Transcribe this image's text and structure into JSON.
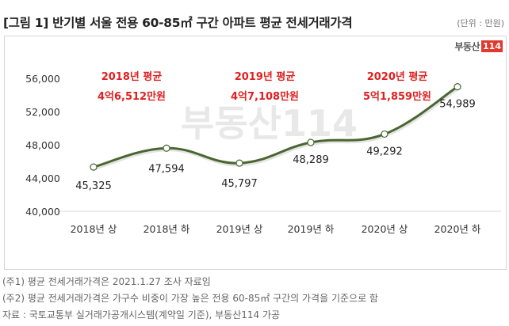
{
  "header": {
    "title": "[그림 1] 반기별 서울 전용 60-85㎡ 구간 아파트 평균 전세거래가격",
    "unit": "(단위 : 만원)"
  },
  "logo": {
    "text": "부동산",
    "badge": "114",
    "watermark": "부동산114"
  },
  "annotations": [
    {
      "line1": "2018년  평균",
      "line2": "4억6,512만원"
    },
    {
      "line1": "2019년  평균",
      "line2": "4억7,108만원"
    },
    {
      "line1": "2020년  평균",
      "line2": "5억1,859만원"
    }
  ],
  "notes": [
    "(주1) 평균 전세거래가격은 2021.1.27 조사 자료임",
    "(주2) 평균 전세거래가격은 가구수 비중이 가장 높은 전용 60-85㎡ 구간의 가격을 기준으로 함",
    "자료 : 국토교통부 실거래가공개시스템(계약일 기준), 부동산114 가공"
  ],
  "colors": {
    "line": "#4a6630",
    "annotation": "#e02020",
    "logo_badge": "#e03a2f"
  },
  "chart_data": {
    "type": "line",
    "title": "[그림 1] 반기별 서울 전용 60-85㎡ 구간 아파트 평균 전세거래가격",
    "xlabel": "",
    "ylabel": "(단위 : 만원)",
    "categories": [
      "2018년 상",
      "2018년 하",
      "2019년 상",
      "2019년 하",
      "2020년 상",
      "2020년 하"
    ],
    "series": [
      {
        "name": "평균 전세거래가격",
        "values": [
          45325,
          47594,
          45797,
          48289,
          49292,
          54989
        ]
      }
    ],
    "value_labels": [
      "45,325",
      "47,594",
      "45,797",
      "48,289",
      "49,292",
      "54,989"
    ],
    "yticks": [
      "40,000",
      "44,000",
      "48,000",
      "52,000",
      "56,000"
    ],
    "ylim": [
      40000,
      56000
    ],
    "grid": false,
    "legend": "none"
  }
}
